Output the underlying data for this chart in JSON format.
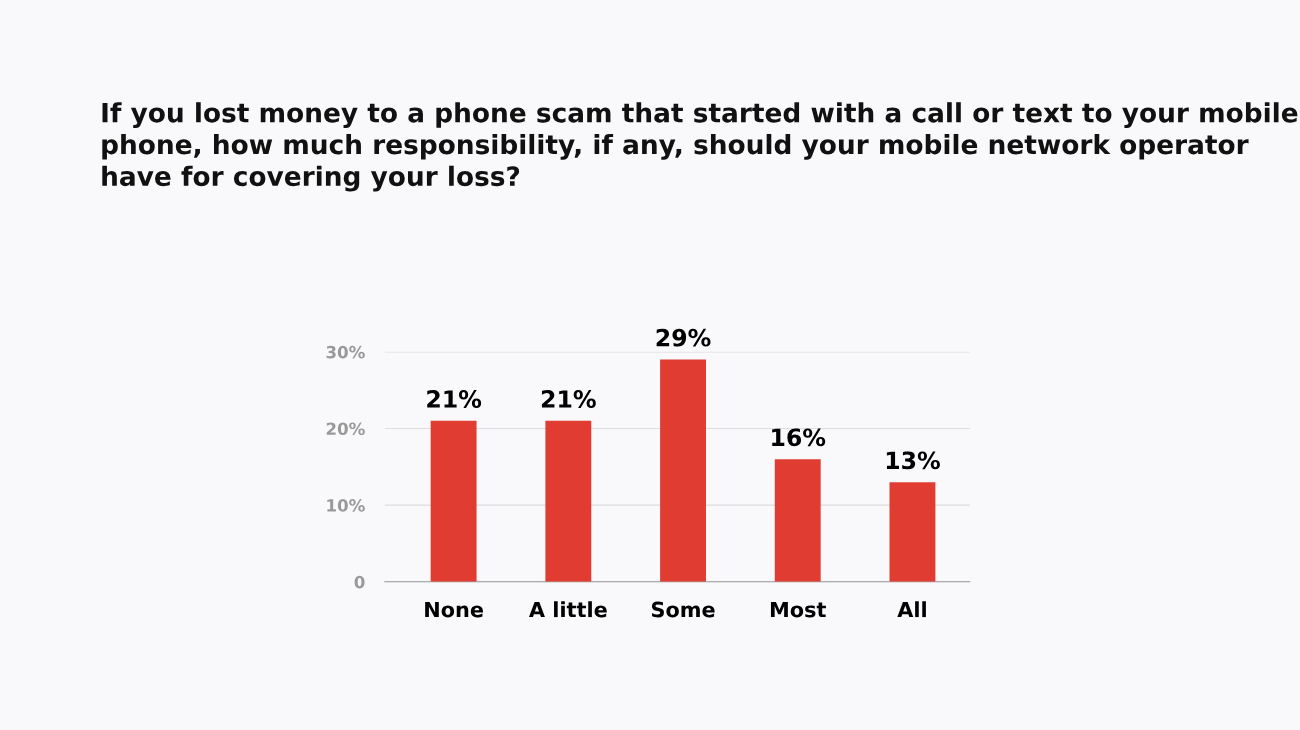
{
  "chart_data": {
    "type": "bar",
    "title": "If you lost money to a phone scam that started with a call or text to your mobile phone, how much responsibility, if any, should your mobile network operator have for covering your loss?",
    "categories": [
      "None",
      "A little",
      "Some",
      "Most",
      "All"
    ],
    "values": [
      21,
      21,
      29,
      16,
      13
    ],
    "value_labels": [
      "21%",
      "21%",
      "29%",
      "16%",
      "13%"
    ],
    "color": "#e03c31",
    "ylim": [
      0,
      30
    ],
    "yticks": [
      {
        "value": 0,
        "label": "0"
      },
      {
        "value": 10,
        "label": "10%"
      },
      {
        "value": 20,
        "label": "20%"
      },
      {
        "value": 30,
        "label": "30%"
      }
    ],
    "grid": "y"
  }
}
